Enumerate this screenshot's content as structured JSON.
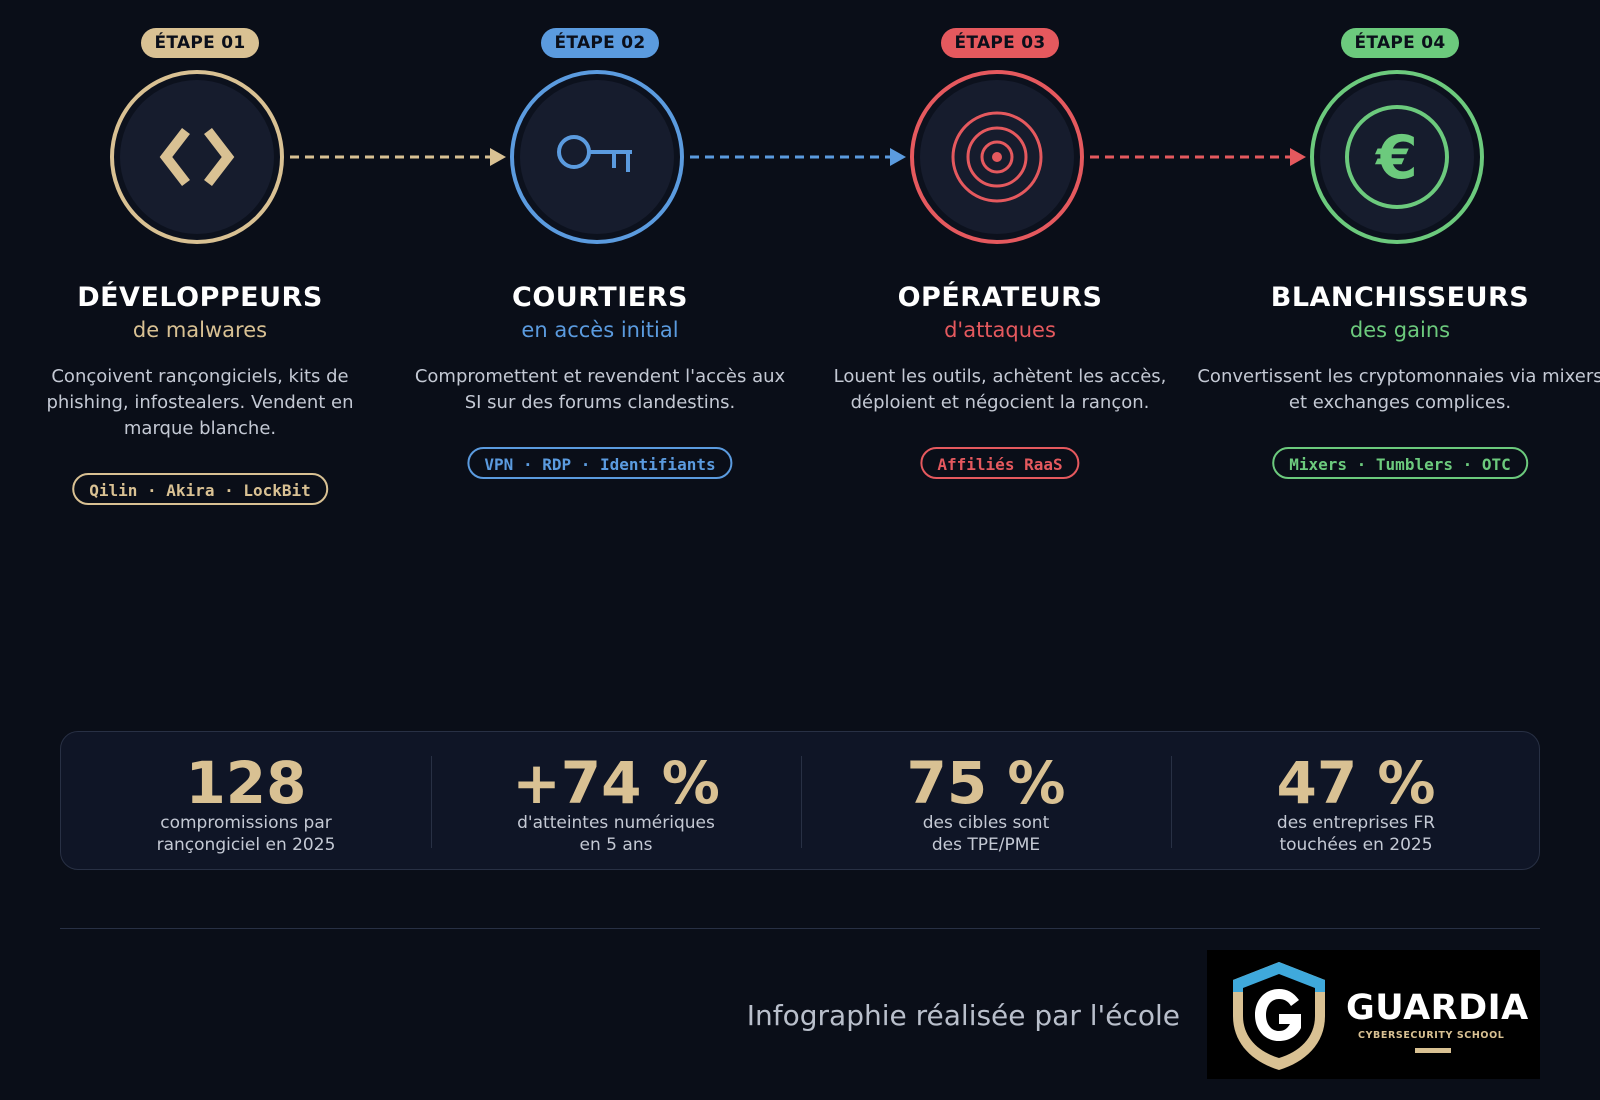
{
  "stages": [
    {
      "badge": "ÉTAPE 01",
      "title": "DÉVELOPPEURS",
      "subtitle": "de malwares",
      "description": "Conçoivent rançongiciels, kits de phishing, infostealers. Vendent en marque blanche.",
      "tag": "Qilin · Akira · LockBit",
      "icon": "code-brackets-icon",
      "color": "#d9c193"
    },
    {
      "badge": "ÉTAPE 02",
      "title": "COURTIERS",
      "subtitle": "en accès initial",
      "description": "Compromettent et revendent l'accès aux SI sur des forums clandestins.",
      "tag": "VPN · RDP · Identifiants",
      "icon": "key-icon",
      "color": "#5b9bdf"
    },
    {
      "badge": "ÉTAPE 03",
      "title": "OPÉRATEURS",
      "subtitle": "d'attaques",
      "description": "Louent les outils, achètent les accès, déploient et négocient la rançon.",
      "tag": "Affiliés RaaS",
      "icon": "target-icon",
      "color": "#e5595e"
    },
    {
      "badge": "ÉTAPE 04",
      "title": "BLANCHISSEURS",
      "subtitle": "des gains",
      "description": "Convertissent les cryptomonnaies via mixers et exchanges complices.",
      "tag": "Mixers · Tumblers · OTC",
      "icon": "euro-icon",
      "color": "#6cca7d"
    }
  ],
  "stats": [
    {
      "value": "128",
      "label_line1": "compromissions par",
      "label_line2": "rançongiciel en 2025"
    },
    {
      "value": "+74 %",
      "label_line1": "d'atteintes numériques",
      "label_line2": "en 5 ans"
    },
    {
      "value": "75 %",
      "label_line1": "des cibles sont",
      "label_line2": "des TPE/PME"
    },
    {
      "value": "47 %",
      "label_line1": "des entreprises FR",
      "label_line2": "touchées en 2025"
    }
  ],
  "footer": {
    "credit": "Infographie réalisée par l'école",
    "logo_name": "GUARDIA",
    "logo_tagline": "CYBERSECURITY SCHOOL"
  },
  "colors": {
    "background": "#0a0e18",
    "stat_value": "#d9c193",
    "text_muted": "#c4c9d4"
  }
}
